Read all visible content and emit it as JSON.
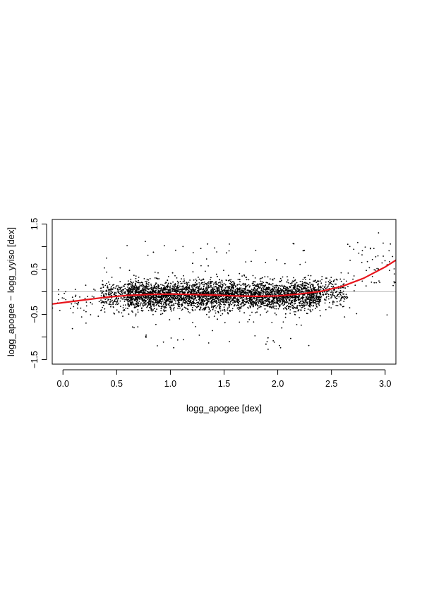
{
  "chart_data": {
    "type": "scatter",
    "title": "",
    "xlabel": "logg_apogee  [dex]",
    "ylabel": "logg_apogee − logg_yyiso  [dex]",
    "xlim": [
      -0.1,
      3.1
    ],
    "ylim": [
      -1.6,
      1.6
    ],
    "x_ticks": [
      {
        "value": 0.0,
        "label": "0.0"
      },
      {
        "value": 0.5,
        "label": "0.5"
      },
      {
        "value": 1.0,
        "label": "1.0"
      },
      {
        "value": 1.5,
        "label": "1.5"
      },
      {
        "value": 2.0,
        "label": "2.0"
      },
      {
        "value": 2.5,
        "label": "2.5"
      },
      {
        "value": 3.0,
        "label": "3.0"
      }
    ],
    "y_ticks": [
      {
        "value": -1.5,
        "label": "−1.5"
      },
      {
        "value": -1.0,
        "label": ""
      },
      {
        "value": -0.5,
        "label": "−0.5"
      },
      {
        "value": 0.0,
        "label": ""
      },
      {
        "value": 0.5,
        "label": "0.5"
      },
      {
        "value": 1.0,
        "label": ""
      },
      {
        "value": 1.5,
        "label": "1.5"
      }
    ],
    "grid": false,
    "reference_line": {
      "y": 0.0,
      "color": "#bbbbbb"
    },
    "point_color": "#000000",
    "point_density": [
      {
        "x_range": [
          -0.1,
          0.35
        ],
        "y_center": -0.22,
        "y_spread": 0.18,
        "density": 0.04
      },
      {
        "x_range": [
          0.35,
          0.6
        ],
        "y_center": -0.08,
        "y_spread": 0.16,
        "density": 0.35
      },
      {
        "x_range": [
          0.6,
          2.4
        ],
        "y_center": -0.08,
        "y_spread": 0.16,
        "density": 1.0
      },
      {
        "x_range": [
          2.4,
          2.65
        ],
        "y_center": 0.0,
        "y_spread": 0.18,
        "density": 0.25
      },
      {
        "x_range": [
          2.65,
          3.1
        ],
        "y_center": 0.55,
        "y_spread": 0.35,
        "density": 0.05
      }
    ],
    "series": [
      {
        "type": "line",
        "color": "#e8141b",
        "x": [
          -0.1,
          0.0,
          0.2,
          0.4,
          0.6,
          0.8,
          1.0,
          1.2,
          1.4,
          1.6,
          1.8,
          2.0,
          2.2,
          2.4,
          2.6,
          2.8,
          3.0,
          3.1
        ],
        "y": [
          -0.27,
          -0.24,
          -0.18,
          -0.12,
          -0.08,
          -0.06,
          -0.05,
          -0.06,
          -0.07,
          -0.09,
          -0.1,
          -0.09,
          -0.05,
          0.01,
          0.12,
          0.3,
          0.55,
          0.7
        ]
      }
    ]
  }
}
